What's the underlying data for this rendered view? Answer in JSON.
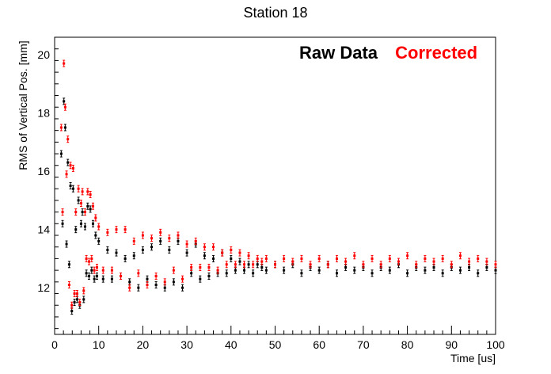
{
  "chart_data": {
    "type": "scatter",
    "title": "Station 18",
    "xlabel": "Time [us]",
    "ylabel": "RMS of Vertical Pos. [mm]",
    "xlim": [
      0,
      100
    ],
    "ylim": [
      10.4,
      20.6
    ],
    "x_ticks": [
      0,
      10,
      20,
      30,
      40,
      50,
      60,
      70,
      80,
      90,
      100
    ],
    "y_ticks": [
      12,
      14,
      16,
      18,
      20
    ],
    "legend": "top-right",
    "grid": false,
    "series": [
      {
        "name": "Raw Data",
        "color": "#000000",
        "points": [
          [
            1.5,
            16.6
          ],
          [
            1.8,
            14.2
          ],
          [
            2.1,
            18.4
          ],
          [
            2.4,
            17.5
          ],
          [
            2.7,
            13.5
          ],
          [
            3.0,
            16.3
          ],
          [
            3.3,
            12.8
          ],
          [
            3.6,
            15.5
          ],
          [
            3.9,
            11.2
          ],
          [
            4.2,
            15.4
          ],
          [
            4.5,
            11.5
          ],
          [
            4.8,
            14.0
          ],
          [
            5.1,
            11.6
          ],
          [
            5.4,
            15.0
          ],
          [
            5.7,
            11.4
          ],
          [
            6.0,
            14.2
          ],
          [
            6.3,
            14.6
          ],
          [
            6.6,
            11.6
          ],
          [
            6.9,
            14.1
          ],
          [
            7.2,
            12.5
          ],
          [
            7.5,
            14.8
          ],
          [
            7.8,
            12.4
          ],
          [
            8.1,
            14.7
          ],
          [
            8.4,
            12.6
          ],
          [
            8.7,
            14.2
          ],
          [
            9.0,
            12.3
          ],
          [
            9.3,
            13.8
          ],
          [
            9.6,
            12.4
          ],
          [
            10,
            13.6
          ],
          [
            11,
            12.3
          ],
          [
            12,
            13.3
          ],
          [
            13,
            12.3
          ],
          [
            14,
            13.2
          ],
          [
            15,
            12.4
          ],
          [
            16,
            13.0
          ],
          [
            17,
            12.2
          ],
          [
            18,
            13.1
          ],
          [
            19,
            12.0
          ],
          [
            20,
            13.3
          ],
          [
            21,
            12.3
          ],
          [
            22,
            13.4
          ],
          [
            23,
            12.1
          ],
          [
            24,
            13.6
          ],
          [
            25,
            12.0
          ],
          [
            26,
            13.3
          ],
          [
            27,
            12.2
          ],
          [
            28,
            13.6
          ],
          [
            29,
            12.0
          ],
          [
            30,
            13.2
          ],
          [
            31,
            12.5
          ],
          [
            32,
            13.5
          ],
          [
            33,
            12.3
          ],
          [
            34,
            13.1
          ],
          [
            35,
            12.4
          ],
          [
            36,
            13.0
          ],
          [
            37,
            12.5
          ],
          [
            38,
            13.2
          ],
          [
            39,
            12.5
          ],
          [
            40,
            13.0
          ],
          [
            41,
            12.6
          ],
          [
            42,
            12.9
          ],
          [
            43,
            12.6
          ],
          [
            44,
            12.8
          ],
          [
            45,
            12.5
          ],
          [
            46,
            12.8
          ],
          [
            47,
            12.7
          ],
          [
            48,
            12.6
          ],
          [
            50,
            12.8
          ],
          [
            52,
            12.6
          ],
          [
            54,
            12.8
          ],
          [
            56,
            12.5
          ],
          [
            58,
            12.7
          ],
          [
            60,
            12.6
          ],
          [
            62,
            12.8
          ],
          [
            64,
            12.5
          ],
          [
            66,
            12.7
          ],
          [
            68,
            12.6
          ],
          [
            70,
            12.7
          ],
          [
            72,
            12.5
          ],
          [
            74,
            12.7
          ],
          [
            76,
            12.6
          ],
          [
            78,
            12.8
          ],
          [
            80,
            12.5
          ],
          [
            82,
            12.7
          ],
          [
            84,
            12.6
          ],
          [
            86,
            12.7
          ],
          [
            88,
            12.5
          ],
          [
            90,
            12.7
          ],
          [
            92,
            12.6
          ],
          [
            94,
            12.7
          ],
          [
            96,
            12.5
          ],
          [
            98,
            12.7
          ],
          [
            100,
            12.6
          ]
        ]
      },
      {
        "name": "Corrected",
        "color": "#ff0000",
        "points": [
          [
            1.5,
            17.5
          ],
          [
            1.8,
            14.6
          ],
          [
            2.1,
            19.7
          ],
          [
            2.4,
            18.2
          ],
          [
            2.7,
            15.9
          ],
          [
            3.0,
            17.1
          ],
          [
            3.3,
            12.1
          ],
          [
            3.6,
            16.2
          ],
          [
            3.9,
            11.4
          ],
          [
            4.2,
            16.1
          ],
          [
            4.5,
            11.8
          ],
          [
            4.8,
            14.6
          ],
          [
            5.1,
            11.8
          ],
          [
            5.4,
            15.4
          ],
          [
            5.7,
            11.5
          ],
          [
            6.0,
            14.9
          ],
          [
            6.3,
            15.3
          ],
          [
            6.6,
            11.9
          ],
          [
            6.9,
            14.6
          ],
          [
            7.2,
            13.0
          ],
          [
            7.5,
            15.3
          ],
          [
            7.8,
            12.9
          ],
          [
            8.1,
            15.2
          ],
          [
            8.4,
            13.0
          ],
          [
            8.7,
            14.8
          ],
          [
            9.0,
            12.6
          ],
          [
            9.3,
            14.4
          ],
          [
            9.6,
            12.7
          ],
          [
            10,
            14.1
          ],
          [
            11,
            12.6
          ],
          [
            12,
            13.9
          ],
          [
            13,
            12.6
          ],
          [
            14,
            14.0
          ],
          [
            15,
            12.4
          ],
          [
            16,
            14.0
          ],
          [
            17,
            12.0
          ],
          [
            18,
            13.6
          ],
          [
            19,
            12.5
          ],
          [
            20,
            13.8
          ],
          [
            21,
            12.1
          ],
          [
            22,
            13.7
          ],
          [
            23,
            12.4
          ],
          [
            24,
            13.9
          ],
          [
            25,
            12.2
          ],
          [
            26,
            13.7
          ],
          [
            27,
            12.6
          ],
          [
            28,
            13.8
          ],
          [
            29,
            12.3
          ],
          [
            30,
            13.5
          ],
          [
            31,
            12.7
          ],
          [
            32,
            13.6
          ],
          [
            33,
            12.7
          ],
          [
            34,
            13.4
          ],
          [
            35,
            12.7
          ],
          [
            36,
            13.4
          ],
          [
            37,
            12.6
          ],
          [
            38,
            13.2
          ],
          [
            39,
            12.8
          ],
          [
            40,
            13.3
          ],
          [
            41,
            12.8
          ],
          [
            42,
            13.2
          ],
          [
            43,
            12.8
          ],
          [
            44,
            13.1
          ],
          [
            45,
            12.8
          ],
          [
            46,
            13.0
          ],
          [
            47,
            12.9
          ],
          [
            48,
            13.0
          ],
          [
            50,
            12.8
          ],
          [
            52,
            13.0
          ],
          [
            54,
            12.9
          ],
          [
            56,
            13.0
          ],
          [
            58,
            12.8
          ],
          [
            60,
            13.0
          ],
          [
            62,
            12.8
          ],
          [
            64,
            13.0
          ],
          [
            66,
            12.9
          ],
          [
            68,
            13.1
          ],
          [
            70,
            12.8
          ],
          [
            72,
            13.0
          ],
          [
            74,
            12.8
          ],
          [
            76,
            13.0
          ],
          [
            78,
            12.9
          ],
          [
            80,
            13.1
          ],
          [
            82,
            12.8
          ],
          [
            84,
            13.0
          ],
          [
            86,
            12.9
          ],
          [
            88,
            13.0
          ],
          [
            90,
            12.8
          ],
          [
            92,
            13.1
          ],
          [
            94,
            12.9
          ],
          [
            96,
            13.0
          ],
          [
            98,
            12.9
          ],
          [
            100,
            12.8
          ]
        ]
      }
    ]
  }
}
